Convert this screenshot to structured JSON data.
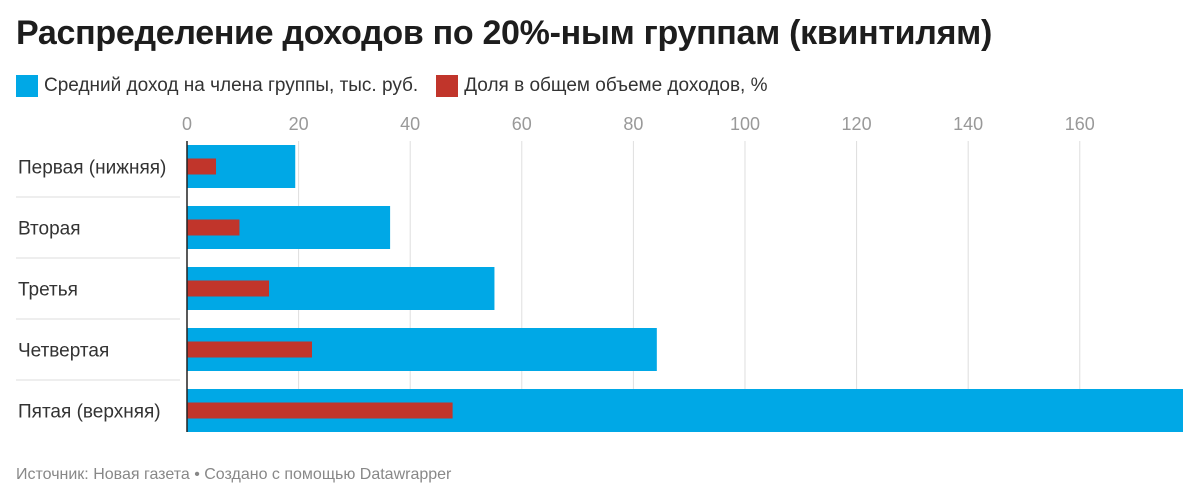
{
  "title": "Распределение доходов по 20%-ным группам (квинтилям)",
  "legend": [
    {
      "label": "Средний доход на члена группы, тыс. руб.",
      "color": "#00a8e6"
    },
    {
      "label": "Доля в общем объеме доходов, %",
      "color": "#c1352b"
    }
  ],
  "footer": "Источник: Новая газета • Создано с помощью Datawrapper",
  "chart_data": {
    "type": "bar",
    "orientation": "horizontal",
    "categories": [
      "Первая (нижняя)",
      "Вторая",
      "Третья",
      "Четвертая",
      "Пятая (верхняя)"
    ],
    "series": [
      {
        "name": "Средний доход на члена группы, тыс. руб.",
        "values": [
          19.4,
          36.4,
          55.1,
          84.2,
          178.5
        ],
        "color": "#00a8e6"
      },
      {
        "name": "Доля в общем объеме доходов, %",
        "values": [
          5.2,
          9.4,
          14.7,
          22.4,
          47.6
        ],
        "color": "#c1352b"
      }
    ],
    "xticks": [
      0,
      20,
      40,
      60,
      80,
      100,
      120,
      140,
      160
    ],
    "xlim": [
      0,
      178.5
    ],
    "grid": true,
    "legend_position": "top-left"
  }
}
